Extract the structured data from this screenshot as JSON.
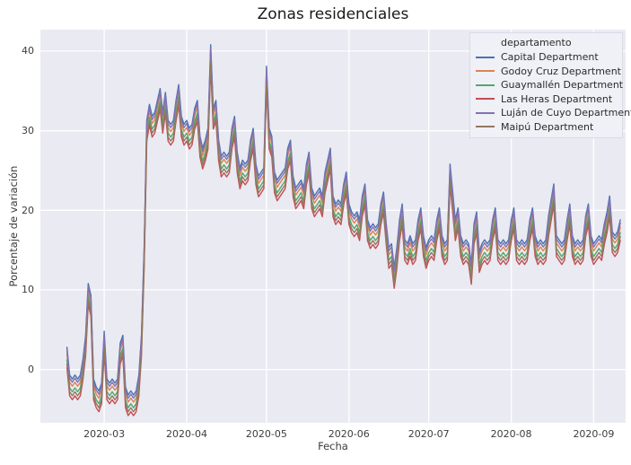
{
  "figure": {
    "title": "Zonas residenciales",
    "background_color": "#ffffff",
    "plot_background_color": "#eaeaf2",
    "grid_color": "#ffffff",
    "text_color": "#2b2b2b"
  },
  "chart_data": {
    "type": "line",
    "title": "Zonas residenciales",
    "xlabel": "Fecha",
    "ylabel": "Porcentaje de variación",
    "legend_title": "departamento",
    "legend_position": "upper right",
    "grid": true,
    "y_ticks": [
      0,
      10,
      20,
      30,
      40
    ],
    "ylim": [
      -6.7,
      42.7
    ],
    "x_ticks": [
      {
        "label": "2020-03",
        "date": "2020-03-01"
      },
      {
        "label": "2020-04",
        "date": "2020-04-01"
      },
      {
        "label": "2020-05",
        "date": "2020-05-01"
      },
      {
        "label": "2020-06",
        "date": "2020-06-01"
      },
      {
        "label": "2020-07",
        "date": "2020-07-01"
      },
      {
        "label": "2020-08",
        "date": "2020-08-01"
      },
      {
        "label": "2020-09",
        "date": "2020-09-11"
      }
    ],
    "x_start_date": "2020-02-16",
    "x_end_date": "2020-09-11",
    "x_frequency": "daily",
    "xlim_days": [
      -10,
      210
    ],
    "series": [
      {
        "name": "Capital Department",
        "color": "#4c72b0",
        "offset_from_base": 1.3
      },
      {
        "name": "Godoy Cruz Department",
        "color": "#dd8452",
        "offset_from_base": 0.4
      },
      {
        "name": "Guaymallén Department",
        "color": "#55a868",
        "offset_from_base": -0.3
      },
      {
        "name": "Las Heras Department",
        "color": "#c44e52",
        "offset_from_base": -1.3
      },
      {
        "name": "Luján de Cuyo Department",
        "color": "#8172b3",
        "offset_from_base": 0.9
      },
      {
        "name": "Maipú Department",
        "color": "#937860",
        "offset_from_base": -0.8
      }
    ],
    "base_values_daily": [
      1.5,
      -2,
      -2.5,
      -2,
      -2.5,
      -2,
      0,
      3,
      9.5,
      8,
      -2.5,
      -3.5,
      -4,
      -3,
      3.5,
      -2.5,
      -3,
      -2.5,
      -3,
      -2.5,
      2,
      3,
      -3.5,
      -4.5,
      -4,
      -4.5,
      -4,
      -2,
      3,
      14,
      30,
      32,
      30.5,
      31,
      32.5,
      34,
      31,
      33.5,
      30,
      29.5,
      30,
      32.5,
      34.5,
      30.5,
      29.5,
      30,
      29,
      29.5,
      31.5,
      32.5,
      28,
      26.5,
      27.5,
      29,
      39.5,
      31.5,
      32.5,
      27.5,
      25.5,
      26,
      25.5,
      26,
      29,
      30.5,
      26,
      24,
      25,
      24.5,
      25,
      27.5,
      29,
      24.5,
      23,
      23.5,
      24,
      36.8,
      29,
      28,
      23.5,
      22.5,
      23,
      23.5,
      24,
      26.5,
      27.5,
      23,
      21.5,
      22,
      22.5,
      21.5,
      24.5,
      26,
      21.5,
      20.5,
      21,
      21.5,
      20.5,
      23.5,
      25,
      26.5,
      20.5,
      19.5,
      20,
      19.5,
      22,
      23.5,
      19.5,
      18.5,
      18,
      18.5,
      17.5,
      20.5,
      22,
      17.5,
      16.5,
      17,
      16.5,
      17,
      19.5,
      21,
      17,
      14,
      14.5,
      11.5,
      14,
      17.5,
      19.5,
      15,
      14.5,
      15.5,
      14.5,
      15,
      17.5,
      19,
      15.5,
      14,
      15,
      15.5,
      15,
      17.5,
      19,
      15.5,
      14.5,
      15,
      24.5,
      21,
      17.5,
      19,
      15.5,
      14.5,
      15,
      14.5,
      12,
      17,
      18.5,
      13.5,
      14.5,
      15,
      14.5,
      15,
      17.5,
      19,
      15,
      14.5,
      15,
      14.5,
      15,
      17.5,
      19,
      15,
      14.5,
      15,
      14.5,
      15,
      17.5,
      19,
      15.5,
      14.5,
      15,
      14.5,
      15,
      18,
      20,
      22,
      15.5,
      15,
      14.5,
      15,
      17.5,
      19.5,
      15.5,
      14.5,
      15,
      14.5,
      15,
      18,
      19.5,
      15.5,
      14.5,
      15,
      15.5,
      15,
      17,
      18.5,
      20.5,
      16,
      15.5,
      16,
      17.5
    ]
  }
}
